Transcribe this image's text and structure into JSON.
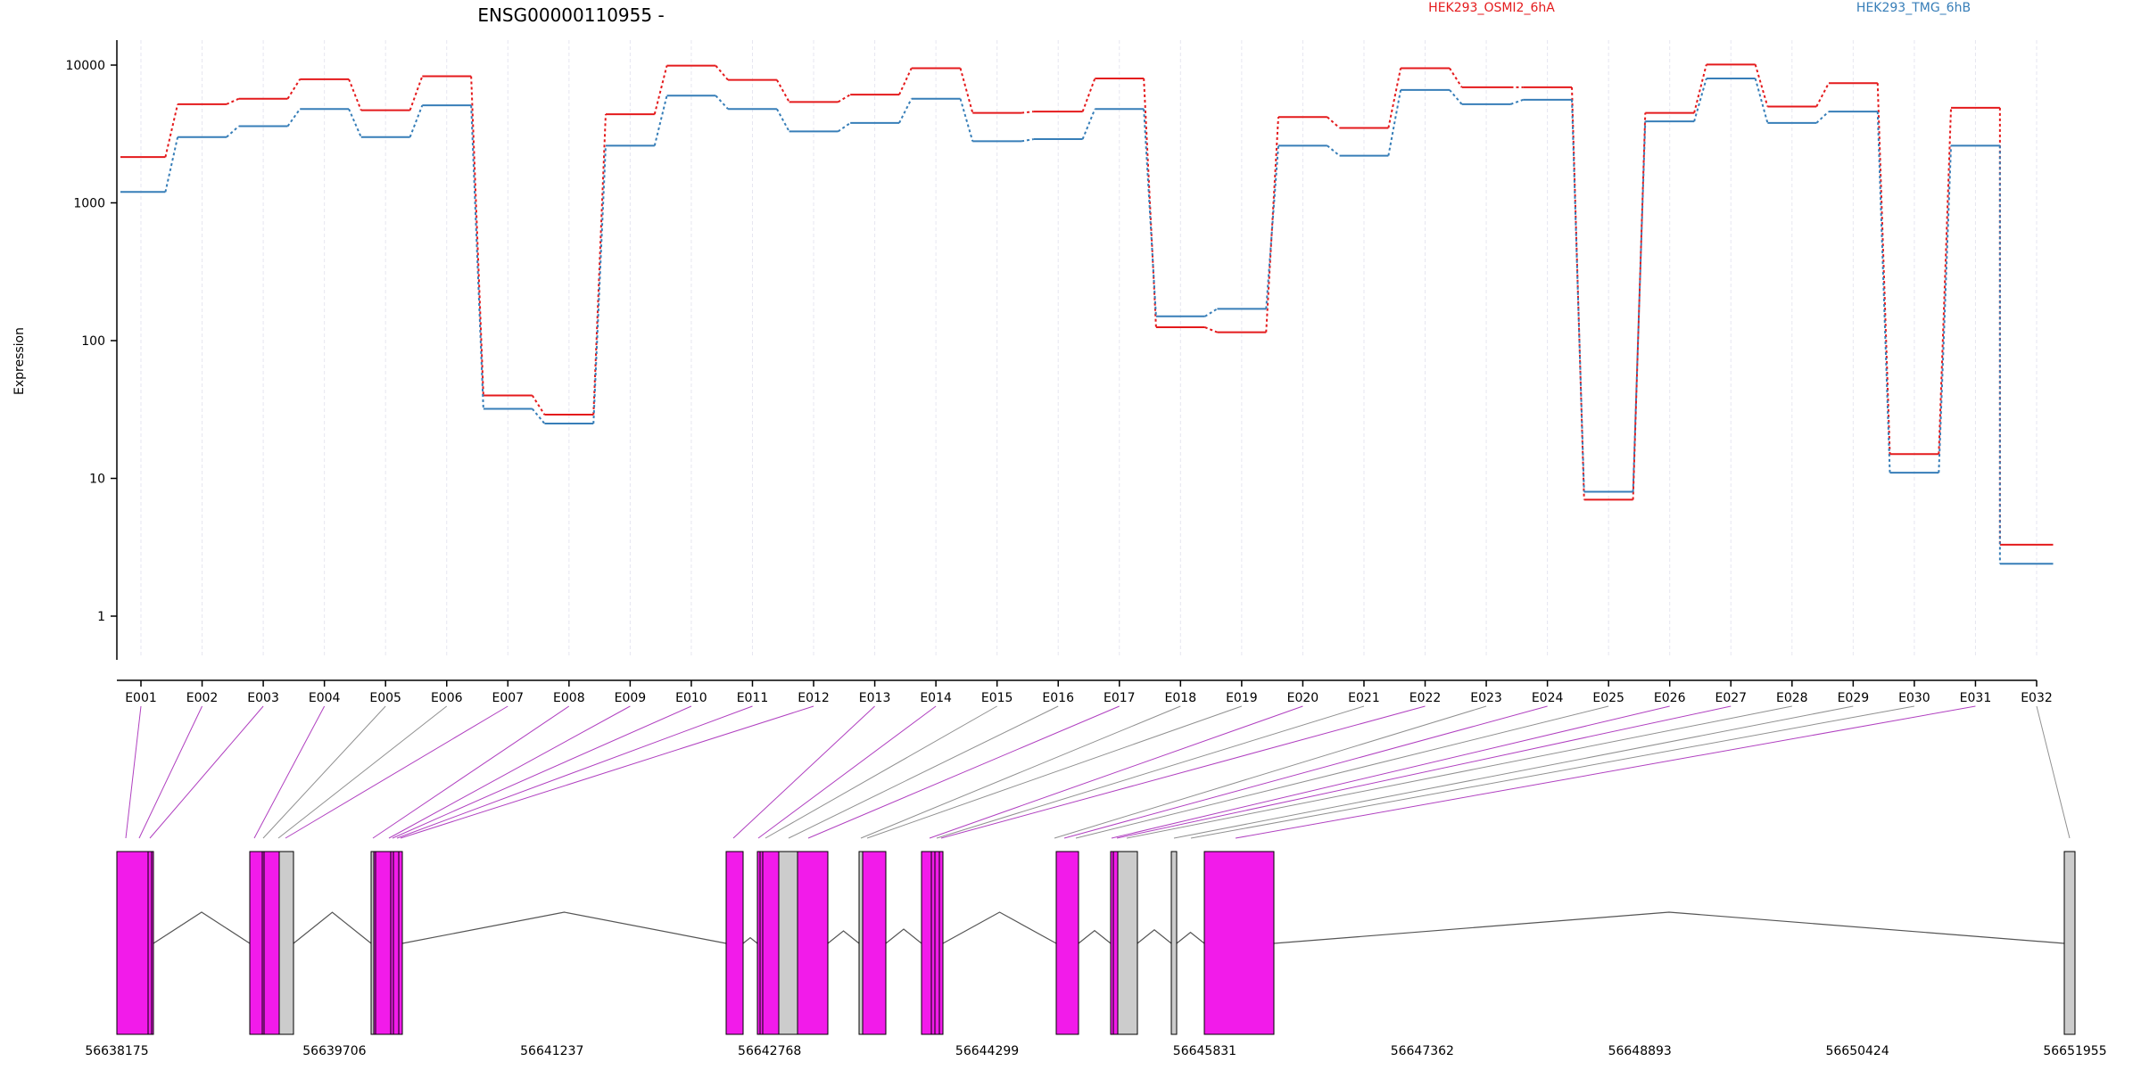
{
  "chart_data": {
    "type": "line",
    "title": "ENSG00000110955 -",
    "ylabel": "Expression",
    "yscale": "log",
    "ylim": [
      0.3,
      15000
    ],
    "yticks": [
      "1",
      "10",
      "100",
      "1000",
      "10000"
    ],
    "grid": "vertical",
    "legend_position": "top-right",
    "categories": [
      "E001",
      "E002",
      "E003",
      "E004",
      "E005",
      "E006",
      "E007",
      "E008",
      "E009",
      "E010",
      "E011",
      "E012",
      "E013",
      "E014",
      "E015",
      "E016",
      "E017",
      "E018",
      "E019",
      "E020",
      "E021",
      "E022",
      "E023",
      "E024",
      "E025",
      "E026",
      "E027",
      "E028",
      "E029",
      "E030",
      "E031",
      "E032"
    ],
    "series": [
      {
        "name": "HEK293_OSMI2_6hA",
        "color": "#e41a1c",
        "values": [
          2150,
          5200,
          5700,
          7900,
          4700,
          8300,
          40,
          29,
          4400,
          9900,
          7800,
          5400,
          6100,
          9500,
          4500,
          4600,
          8000,
          125,
          115,
          4200,
          3500,
          9500,
          6900,
          6900,
          7,
          4500,
          10100,
          5000,
          7400,
          15,
          4900,
          3.3
        ]
      },
      {
        "name": "HEK293_TMG_6hB",
        "color": "#377eb8",
        "values": [
          1200,
          3000,
          3600,
          4800,
          3000,
          5100,
          32,
          25,
          2600,
          6000,
          4800,
          3300,
          3800,
          5700,
          2800,
          2900,
          4800,
          150,
          170,
          2600,
          2200,
          6600,
          5200,
          5600,
          8,
          3900,
          8000,
          3800,
          4600,
          11,
          2600,
          2.4
        ]
      }
    ],
    "genomic_ticks": [
      "56638175",
      "56639706",
      "56641237",
      "56642768",
      "56644299",
      "56645831",
      "56647362",
      "56648893",
      "56650424",
      "56651955"
    ]
  }
}
